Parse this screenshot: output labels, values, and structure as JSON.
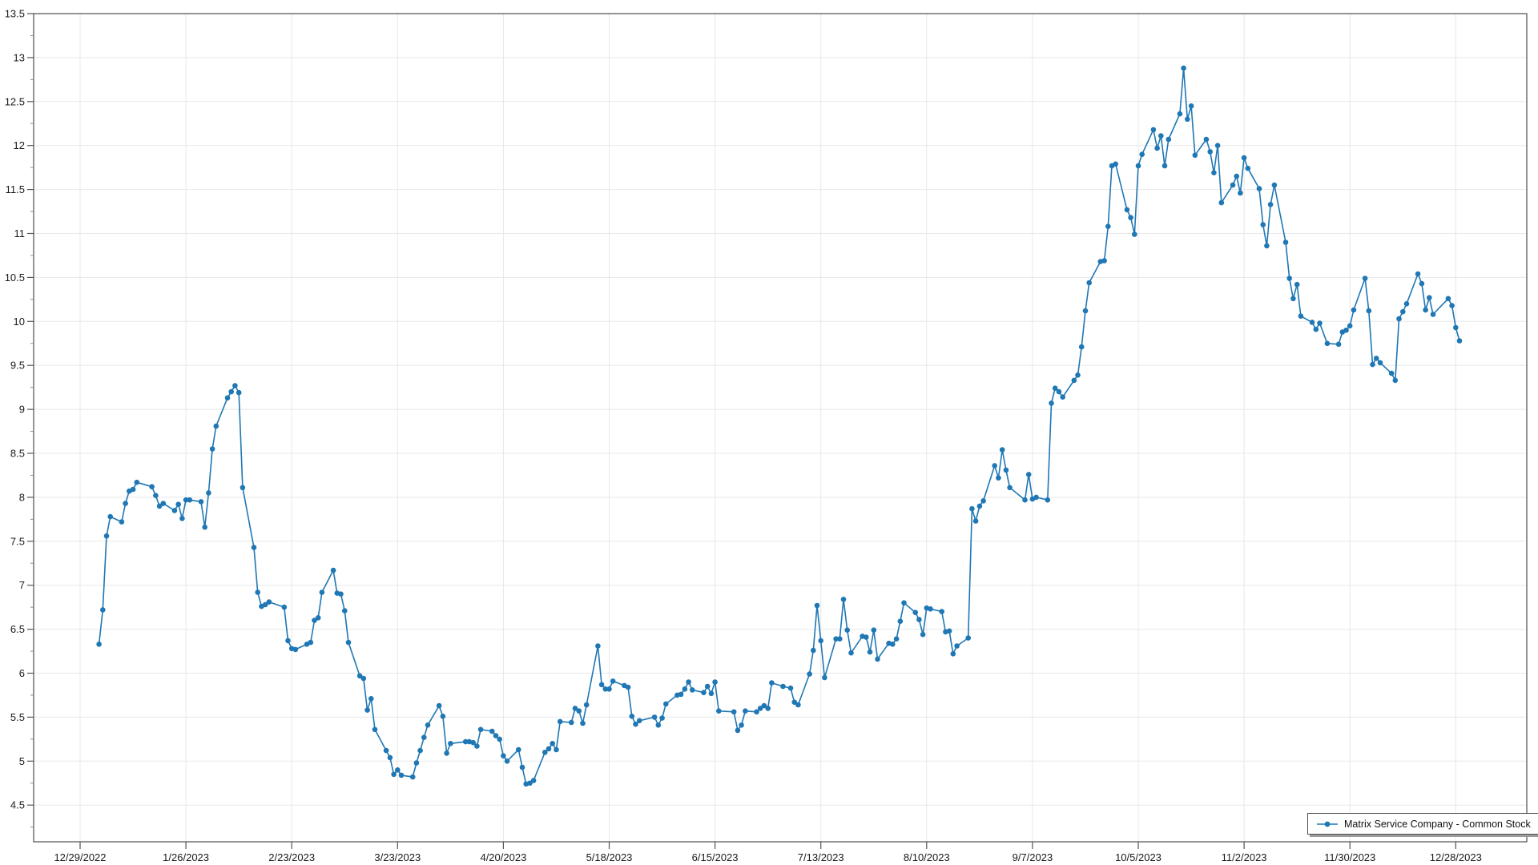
{
  "chart_data": {
    "type": "line",
    "title": "",
    "xlabel": "",
    "ylabel": "",
    "grid": true,
    "legend_position": "bottom-right",
    "ylim": [
      4.08,
      13.5
    ],
    "x_ticks": [
      "12/29/2022",
      "1/26/2023",
      "2/23/2023",
      "3/23/2023",
      "4/20/2023",
      "5/18/2023",
      "6/15/2023",
      "7/13/2023",
      "8/10/2023",
      "9/7/2023",
      "10/5/2023",
      "11/2/2023",
      "11/30/2023",
      "12/28/2023"
    ],
    "y_tick_values": [
      13.5,
      13,
      12.5,
      12,
      11.5,
      11,
      10.5,
      10,
      9.5,
      9,
      8.5,
      8,
      7.5,
      7,
      6.5,
      6,
      5.5,
      5,
      4.5
    ],
    "y_tick_labels": [
      "13.5",
      "13",
      "12.5",
      "12",
      "11.5",
      "11",
      "10.5",
      "10",
      "9.5",
      "9",
      "8.5",
      "8",
      "7.5",
      "7",
      "6.5",
      "6",
      "5.5",
      "5",
      "4.5"
    ],
    "series": [
      {
        "name": "Matrix Service Company - Common Stock",
        "color": "#1f77b4",
        "year": 2023,
        "dates": [
          "1/3",
          "1/4",
          "1/5",
          "1/6",
          "1/9",
          "1/10",
          "1/11",
          "1/12",
          "1/13",
          "1/17",
          "1/18",
          "1/19",
          "1/20",
          "1/23",
          "1/24",
          "1/25",
          "1/26",
          "1/27",
          "1/30",
          "1/31",
          "2/1",
          "2/2",
          "2/3",
          "2/6",
          "2/7",
          "2/8",
          "2/9",
          "2/10",
          "2/13",
          "2/14",
          "2/15",
          "2/16",
          "2/17",
          "2/21",
          "2/22",
          "2/23",
          "2/24",
          "2/27",
          "2/28",
          "3/1",
          "3/2",
          "3/3",
          "3/6",
          "3/7",
          "3/8",
          "3/9",
          "3/10",
          "3/13",
          "3/14",
          "3/15",
          "3/16",
          "3/17",
          "3/20",
          "3/21",
          "3/22",
          "3/23",
          "3/24",
          "3/27",
          "3/28",
          "3/29",
          "3/30",
          "3/31",
          "4/3",
          "4/4",
          "4/5",
          "4/6",
          "4/10",
          "4/11",
          "4/12",
          "4/13",
          "4/14",
          "4/17",
          "4/18",
          "4/19",
          "4/20",
          "4/21",
          "4/24",
          "4/25",
          "4/26",
          "4/27",
          "4/28",
          "5/1",
          "5/2",
          "5/3",
          "5/4",
          "5/5",
          "5/8",
          "5/9",
          "5/10",
          "5/11",
          "5/12",
          "5/15",
          "5/16",
          "5/17",
          "5/18",
          "5/19",
          "5/22",
          "5/23",
          "5/24",
          "5/25",
          "5/26",
          "5/30",
          "5/31",
          "6/1",
          "6/2",
          "6/5",
          "6/6",
          "6/7",
          "6/8",
          "6/9",
          "6/12",
          "6/13",
          "6/14",
          "6/15",
          "6/16",
          "6/20",
          "6/21",
          "6/22",
          "6/23",
          "6/26",
          "6/27",
          "6/28",
          "6/29",
          "6/30",
          "7/3",
          "7/5",
          "7/6",
          "7/7",
          "7/10",
          "7/11",
          "7/12",
          "7/13",
          "7/14",
          "7/17",
          "7/18",
          "7/19",
          "7/20",
          "7/21",
          "7/24",
          "7/25",
          "7/26",
          "7/27",
          "7/28",
          "7/31",
          "8/1",
          "8/2",
          "8/3",
          "8/4",
          "8/7",
          "8/8",
          "8/9",
          "8/10",
          "8/11",
          "8/14",
          "8/15",
          "8/16",
          "8/17",
          "8/18",
          "8/21",
          "8/22",
          "8/23",
          "8/24",
          "8/25",
          "8/28",
          "8/29",
          "8/30",
          "8/31",
          "9/1",
          "9/5",
          "9/6",
          "9/7",
          "9/8",
          "9/11",
          "9/12",
          "9/13",
          "9/14",
          "9/15",
          "9/18",
          "9/19",
          "9/20",
          "9/21",
          "9/22",
          "9/25",
          "9/26",
          "9/27",
          "9/28",
          "9/29",
          "10/2",
          "10/3",
          "10/4",
          "10/5",
          "10/6",
          "10/9",
          "10/10",
          "10/11",
          "10/12",
          "10/13",
          "10/16",
          "10/17",
          "10/18",
          "10/19",
          "10/20",
          "10/23",
          "10/24",
          "10/25",
          "10/26",
          "10/27",
          "10/30",
          "10/31",
          "11/1",
          "11/2",
          "11/3",
          "11/6",
          "11/7",
          "11/8",
          "11/9",
          "11/10",
          "11/13",
          "11/14",
          "11/15",
          "11/16",
          "11/17",
          "11/20",
          "11/21",
          "11/22",
          "11/24",
          "11/27",
          "11/28",
          "11/29",
          "11/30",
          "12/1",
          "12/4",
          "12/5",
          "12/6",
          "12/7",
          "12/8",
          "12/11",
          "12/12",
          "12/13",
          "12/14",
          "12/15",
          "12/18",
          "12/19",
          "12/20",
          "12/21",
          "12/22",
          "12/26",
          "12/27",
          "12/28",
          "12/29"
        ],
        "values": [
          6.33,
          6.72,
          7.56,
          7.78,
          7.72,
          7.93,
          8.07,
          8.09,
          8.17,
          8.12,
          8.02,
          7.9,
          7.93,
          7.85,
          7.92,
          7.76,
          7.97,
          7.97,
          7.95,
          7.66,
          8.05,
          8.55,
          8.81,
          9.13,
          9.2,
          9.27,
          9.19,
          8.11,
          7.43,
          6.92,
          6.76,
          6.78,
          6.81,
          6.75,
          6.37,
          6.28,
          6.27,
          6.33,
          6.35,
          6.6,
          6.63,
          6.92,
          7.17,
          6.91,
          6.9,
          6.71,
          6.35,
          5.97,
          5.94,
          5.58,
          5.71,
          5.36,
          5.12,
          5.04,
          4.85,
          4.9,
          4.84,
          4.82,
          4.98,
          5.12,
          5.27,
          5.41,
          5.63,
          5.51,
          5.09,
          5.2,
          5.22,
          5.22,
          5.21,
          5.17,
          5.36,
          5.34,
          5.29,
          5.25,
          5.06,
          5.0,
          5.13,
          4.93,
          4.74,
          4.75,
          4.78,
          5.1,
          5.14,
          5.2,
          5.13,
          5.45,
          5.44,
          5.6,
          5.57,
          5.43,
          5.64,
          6.31,
          5.87,
          5.82,
          5.82,
          5.91,
          5.86,
          5.84,
          5.51,
          5.42,
          5.46,
          5.5,
          5.41,
          5.49,
          5.65,
          5.75,
          5.76,
          5.82,
          5.9,
          5.81,
          5.78,
          5.85,
          5.77,
          5.9,
          5.57,
          5.56,
          5.35,
          5.41,
          5.57,
          5.56,
          5.6,
          5.63,
          5.6,
          5.89,
          5.85,
          5.83,
          5.67,
          5.64,
          5.99,
          6.26,
          6.77,
          6.37,
          5.95,
          6.39,
          6.39,
          6.84,
          6.49,
          6.23,
          6.42,
          6.41,
          6.24,
          6.49,
          6.16,
          6.34,
          6.33,
          6.39,
          6.59,
          6.8,
          6.69,
          6.61,
          6.44,
          6.74,
          6.73,
          6.7,
          6.47,
          6.48,
          6.22,
          6.31,
          6.4,
          7.87,
          7.73,
          7.9,
          7.96,
          8.36,
          8.22,
          8.54,
          8.31,
          8.11,
          7.97,
          8.26,
          7.98,
          8.0,
          7.97,
          9.07,
          9.24,
          9.2,
          9.14,
          9.33,
          9.39,
          9.71,
          10.12,
          10.44,
          10.68,
          10.69,
          11.08,
          11.77,
          11.79,
          11.27,
          11.18,
          10.99,
          11.77,
          11.9,
          12.18,
          11.97,
          12.11,
          11.77,
          12.07,
          12.36,
          12.88,
          12.3,
          12.45,
          11.89,
          12.07,
          11.93,
          11.69,
          12.0,
          11.35,
          11.55,
          11.65,
          11.46,
          11.86,
          11.74,
          11.51,
          11.1,
          10.86,
          11.33,
          11.55,
          10.9,
          10.49,
          10.26,
          10.42,
          10.06,
          9.99,
          9.91,
          9.98,
          9.75,
          9.74,
          9.88,
          9.9,
          9.95,
          10.13,
          10.49,
          10.12,
          9.51,
          9.58,
          9.53,
          9.41,
          9.33,
          10.03,
          10.11,
          10.2,
          10.54,
          10.43,
          10.13,
          10.27,
          10.08,
          10.26,
          10.18,
          9.93,
          9.78
        ]
      }
    ]
  },
  "legend": {
    "label": "Matrix Service Company - Common Stock"
  },
  "colors": {
    "line": "#1f77b4",
    "grid": "#e8e8e8",
    "frame": "#4d4d4d",
    "tick": "#555555",
    "minor_tick": "#8a8a8a",
    "text": "#1a1a1a",
    "background": "#ffffff"
  }
}
